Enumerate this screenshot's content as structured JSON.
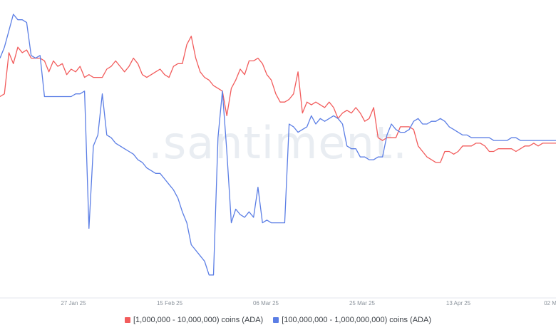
{
  "watermark": ".santiment.",
  "chart_data": {
    "type": "line",
    "title": "",
    "xlabel": "",
    "ylabel": "",
    "x_ticks": [
      "27 Jan 25",
      "15 Feb 25",
      "06 Mar 25",
      "25 Mar 25",
      "13 Apr 25",
      "02 M"
    ],
    "grid": false,
    "legend_position": "bottom",
    "ylim": [
      0,
      100
    ],
    "x": [
      0,
      1,
      2,
      3,
      4,
      5,
      6,
      7,
      8,
      9,
      10,
      11,
      12,
      13,
      14,
      15,
      16,
      17,
      18,
      19,
      20,
      21,
      22,
      23,
      24,
      25,
      26,
      27,
      28,
      29,
      30,
      31,
      32,
      33,
      34,
      35,
      36,
      37,
      38,
      39,
      40,
      41,
      42,
      43,
      44,
      45,
      46,
      47,
      48,
      49,
      50,
      51,
      52,
      53,
      54,
      55,
      56,
      57,
      58,
      59,
      60,
      61,
      62,
      63,
      64,
      65,
      66,
      67,
      68,
      69,
      70,
      71,
      72,
      73,
      74,
      75,
      76,
      77,
      78,
      79,
      80,
      81,
      82,
      83,
      84,
      85,
      86,
      87,
      88,
      89,
      90,
      91,
      92,
      93,
      94,
      95,
      96,
      97,
      98,
      99,
      100,
      101,
      102,
      103,
      104,
      105,
      106,
      107,
      108,
      109,
      110,
      111,
      112,
      113,
      114,
      115,
      116,
      117,
      118,
      119,
      120,
      121,
      122,
      123,
      124,
      125
    ],
    "series": [
      {
        "name": "[1,000,000 - 10,000,000) coins (ADA)",
        "color": "#f25c5c",
        "values": [
          70,
          71,
          86,
          82,
          88,
          86,
          87,
          84,
          84,
          84,
          83,
          79,
          83,
          81,
          82,
          78,
          80,
          79,
          81,
          77,
          78,
          77,
          77,
          77,
          80,
          81,
          83,
          81,
          79,
          81,
          84,
          82,
          78,
          77,
          78,
          79,
          80,
          78,
          77,
          81,
          82,
          82,
          89,
          92,
          84,
          79,
          77,
          76,
          74,
          73,
          72,
          63,
          73,
          76,
          80,
          78,
          83,
          83,
          84,
          82,
          78,
          76,
          71,
          68,
          68,
          69,
          71,
          79,
          64,
          68,
          67,
          68,
          67,
          66,
          68,
          66,
          62,
          64,
          65,
          64,
          66,
          64,
          61,
          62,
          66,
          55,
          54,
          55,
          55,
          55,
          59,
          59,
          59,
          58,
          52,
          50,
          48,
          47,
          46,
          46,
          50,
          50,
          49,
          50,
          52,
          52,
          52,
          53,
          53,
          52,
          50,
          50,
          51,
          51,
          51,
          51,
          50,
          51,
          52,
          52,
          53,
          52,
          53,
          53,
          53,
          53
        ]
      },
      {
        "name": "[100,000,000 - 1,000,000,000) coins (ADA)",
        "color": "#5b7ee5",
        "values": [
          84,
          88,
          94,
          100,
          98,
          98,
          97,
          85,
          84,
          85,
          70,
          70,
          70,
          70,
          70,
          70,
          70,
          71,
          71,
          72,
          22,
          52,
          56,
          71,
          56,
          55,
          53,
          52,
          51,
          50,
          49,
          47,
          46,
          44,
          43,
          42,
          42,
          40,
          38,
          36,
          33,
          28,
          24,
          16,
          14,
          12,
          10,
          5,
          5,
          55,
          72,
          50,
          24,
          29,
          27,
          26,
          28,
          26,
          37,
          24,
          25,
          24,
          24,
          24,
          24,
          60,
          59,
          57,
          58,
          59,
          63,
          60,
          62,
          61,
          62,
          63,
          62,
          60,
          52,
          51,
          51,
          48,
          48,
          47,
          47,
          48,
          48,
          56,
          60,
          58,
          57,
          57,
          58,
          61,
          62,
          60,
          60,
          61,
          61,
          62,
          61,
          59,
          58,
          57,
          56,
          56,
          55,
          55,
          55,
          55,
          55,
          54,
          54,
          54,
          54,
          55,
          55,
          54,
          54,
          54,
          54,
          54,
          54,
          54,
          54,
          54
        ]
      }
    ]
  }
}
